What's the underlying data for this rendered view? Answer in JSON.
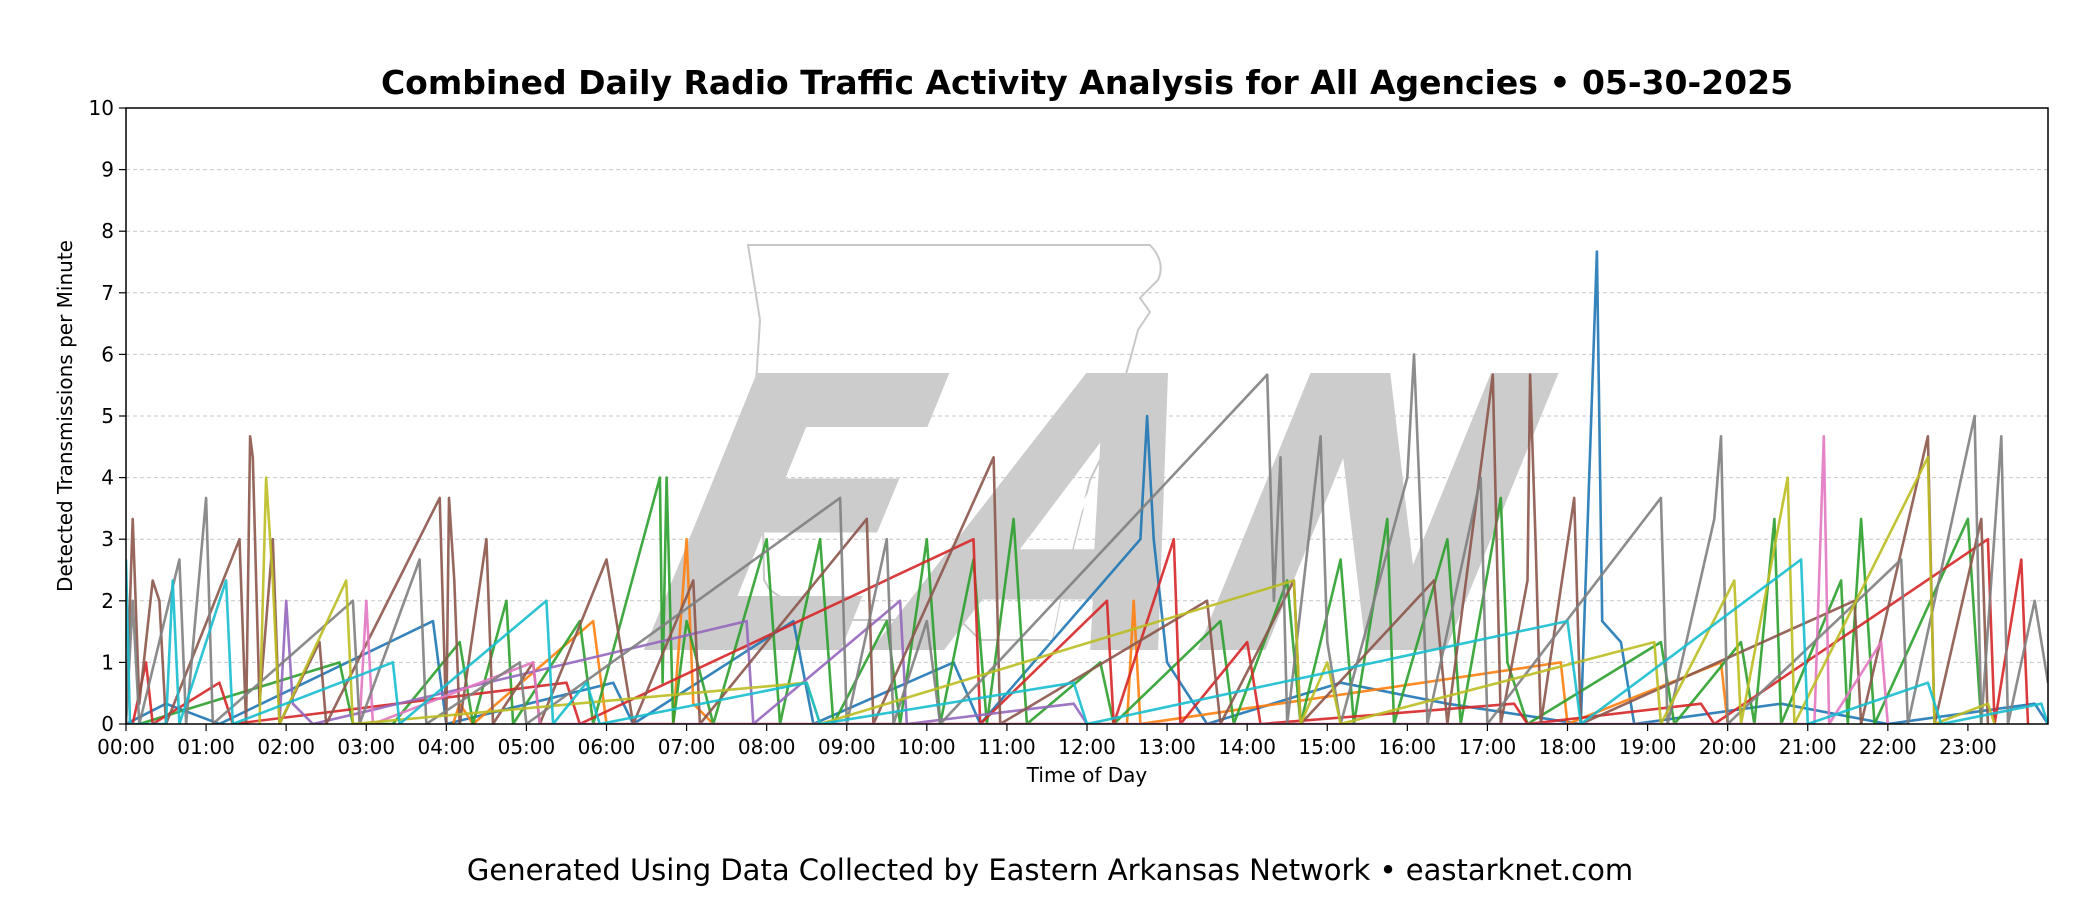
{
  "footer": "Generated Using Data Collected by Eastern Arkansas Network • eastarknet.com",
  "watermark": {
    "text": "EAN",
    "color": "#cccccc",
    "logo": "arkansas-state-outline"
  },
  "chart_data": {
    "type": "line",
    "title": "Combined Daily Radio Traffic Activity Analysis for All Agencies • 05-30-2025",
    "xlabel": "Time of Day",
    "ylabel": "Detected Transmissions per Minute",
    "xlim": [
      "00:00",
      "24:00"
    ],
    "ylim": [
      0,
      10
    ],
    "yticks": [
      0,
      1,
      2,
      3,
      4,
      5,
      6,
      7,
      8,
      9,
      10
    ],
    "xticks": [
      "00:00",
      "01:00",
      "02:00",
      "03:00",
      "04:00",
      "05:00",
      "06:00",
      "07:00",
      "08:00",
      "09:00",
      "10:00",
      "11:00",
      "12:00",
      "13:00",
      "14:00",
      "15:00",
      "16:00",
      "17:00",
      "18:00",
      "19:00",
      "20:00",
      "21:00",
      "22:00",
      "23:00"
    ],
    "grid": "horizontal-dashed",
    "legend": "none",
    "series": [
      {
        "color": "#1f77b4",
        "points": [
          [
            "00:00",
            0
          ],
          [
            "00:30",
            0.33
          ],
          [
            "01:10",
            0
          ],
          [
            "03:50",
            1.67
          ],
          [
            "04:00",
            0
          ],
          [
            "06:05",
            0.67
          ],
          [
            "06:20",
            0
          ],
          [
            "08:20",
            1.67
          ],
          [
            "08:35",
            0
          ],
          [
            "10:20",
            1
          ],
          [
            "10:40",
            0
          ],
          [
            "12:40",
            3
          ],
          [
            "12:45",
            5
          ],
          [
            "12:50",
            3
          ],
          [
            "13:00",
            1
          ],
          [
            "13:30",
            0
          ],
          [
            "15:10",
            0.67
          ],
          [
            "16:30",
            0.33
          ],
          [
            "18:10",
            0
          ],
          [
            "18:22",
            7.67
          ],
          [
            "18:26",
            1.67
          ],
          [
            "18:40",
            1.33
          ],
          [
            "18:50",
            0
          ],
          [
            "20:40",
            0.33
          ],
          [
            "22:00",
            0
          ],
          [
            "23:50",
            0.33
          ],
          [
            "24:00",
            0
          ]
        ]
      },
      {
        "color": "#ff7f0e",
        "points": [
          [
            "04:05",
            0
          ],
          [
            "04:10",
            0.33
          ],
          [
            "04:20",
            0
          ],
          [
            "05:50",
            1.67
          ],
          [
            "06:00",
            0
          ],
          [
            "06:50",
            0
          ],
          [
            "07:00",
            3
          ],
          [
            "07:05",
            0.33
          ],
          [
            "07:20",
            0
          ],
          [
            "12:30",
            0
          ],
          [
            "12:35",
            2
          ],
          [
            "12:40",
            0
          ],
          [
            "17:55",
            1
          ],
          [
            "18:00",
            0
          ],
          [
            "19:55",
            1
          ],
          [
            "20:00",
            0
          ]
        ]
      },
      {
        "color": "#2ca02c",
        "points": [
          [
            "00:10",
            0
          ],
          [
            "02:40",
            1
          ],
          [
            "02:50",
            0
          ],
          [
            "03:20",
            0
          ],
          [
            "04:10",
            1.33
          ],
          [
            "04:20",
            0
          ],
          [
            "04:45",
            2
          ],
          [
            "04:50",
            0
          ],
          [
            "05:40",
            1.67
          ],
          [
            "05:50",
            0
          ],
          [
            "06:40",
            4
          ],
          [
            "06:42",
            0.67
          ],
          [
            "06:45",
            4
          ],
          [
            "06:50",
            0
          ],
          [
            "07:00",
            1.67
          ],
          [
            "07:20",
            0
          ],
          [
            "08:00",
            3
          ],
          [
            "08:10",
            0
          ],
          [
            "08:40",
            3
          ],
          [
            "08:50",
            0
          ],
          [
            "09:30",
            1.67
          ],
          [
            "09:40",
            0
          ],
          [
            "10:00",
            3
          ],
          [
            "10:10",
            0
          ],
          [
            "10:35",
            2.67
          ],
          [
            "10:45",
            0
          ],
          [
            "11:05",
            3.33
          ],
          [
            "11:15",
            0
          ],
          [
            "12:10",
            1
          ],
          [
            "12:20",
            0
          ],
          [
            "13:40",
            1.67
          ],
          [
            "13:50",
            0
          ],
          [
            "14:30",
            2.33
          ],
          [
            "14:40",
            0
          ],
          [
            "15:10",
            2.67
          ],
          [
            "15:20",
            0
          ],
          [
            "15:45",
            3.33
          ],
          [
            "15:50",
            0
          ],
          [
            "16:30",
            3
          ],
          [
            "16:40",
            0
          ],
          [
            "17:10",
            3.67
          ],
          [
            "17:15",
            1
          ],
          [
            "17:30",
            0
          ],
          [
            "19:10",
            1.33
          ],
          [
            "19:20",
            0
          ],
          [
            "20:10",
            1.33
          ],
          [
            "20:20",
            0
          ],
          [
            "20:35",
            3.33
          ],
          [
            "20:40",
            0
          ],
          [
            "21:25",
            2.33
          ],
          [
            "21:30",
            0
          ],
          [
            "21:40",
            3.33
          ],
          [
            "21:50",
            0
          ],
          [
            "23:00",
            3.33
          ],
          [
            "23:10",
            0
          ]
        ]
      },
      {
        "color": "#d62728",
        "points": [
          [
            "00:05",
            0
          ],
          [
            "00:15",
            1
          ],
          [
            "00:20",
            0
          ],
          [
            "01:10",
            0.67
          ],
          [
            "01:20",
            0
          ],
          [
            "05:30",
            0.67
          ],
          [
            "05:40",
            0
          ],
          [
            "10:35",
            3
          ],
          [
            "10:40",
            0
          ],
          [
            "12:15",
            2
          ],
          [
            "12:20",
            0
          ],
          [
            "13:05",
            3
          ],
          [
            "13:10",
            0
          ],
          [
            "14:00",
            1.33
          ],
          [
            "14:10",
            0
          ],
          [
            "17:20",
            0.33
          ],
          [
            "17:30",
            0
          ],
          [
            "19:40",
            0.33
          ],
          [
            "19:50",
            0
          ],
          [
            "23:15",
            3
          ],
          [
            "23:20",
            0
          ],
          [
            "23:40",
            2.67
          ],
          [
            "23:45",
            0
          ]
        ]
      },
      {
        "color": "#9467bd",
        "points": [
          [
            "01:55",
            0
          ],
          [
            "02:00",
            2
          ],
          [
            "02:05",
            0.33
          ],
          [
            "02:20",
            0
          ],
          [
            "07:45",
            1.67
          ],
          [
            "07:50",
            0
          ],
          [
            "09:40",
            2
          ],
          [
            "09:45",
            0
          ],
          [
            "11:50",
            0.33
          ],
          [
            "12:00",
            0
          ]
        ]
      },
      {
        "color": "#8c564b",
        "points": [
          [
            "00:00",
            0
          ],
          [
            "00:05",
            3.33
          ],
          [
            "00:10",
            0.33
          ],
          [
            "00:20",
            2.33
          ],
          [
            "00:25",
            2
          ],
          [
            "00:30",
            0
          ],
          [
            "01:25",
            3
          ],
          [
            "01:30",
            0
          ],
          [
            "01:33",
            4.67
          ],
          [
            "01:35",
            4.33
          ],
          [
            "01:40",
            0.33
          ],
          [
            "01:50",
            3
          ],
          [
            "01:55",
            0
          ],
          [
            "02:25",
            1.33
          ],
          [
            "02:30",
            0
          ],
          [
            "03:55",
            3.67
          ],
          [
            "04:00",
            0
          ],
          [
            "04:02",
            3.67
          ],
          [
            "04:06",
            2.33
          ],
          [
            "04:10",
            0
          ],
          [
            "04:30",
            3
          ],
          [
            "04:35",
            0
          ],
          [
            "05:05",
            1
          ],
          [
            "05:10",
            0
          ],
          [
            "06:00",
            2.67
          ],
          [
            "06:10",
            1.33
          ],
          [
            "06:20",
            0
          ],
          [
            "07:05",
            2.33
          ],
          [
            "07:10",
            0
          ],
          [
            "09:15",
            3.33
          ],
          [
            "09:20",
            0
          ],
          [
            "10:50",
            4.33
          ],
          [
            "10:55",
            0
          ],
          [
            "13:30",
            2
          ],
          [
            "13:40",
            0
          ],
          [
            "14:35",
            2.33
          ],
          [
            "14:40",
            0
          ],
          [
            "16:20",
            2.33
          ],
          [
            "16:30",
            0
          ],
          [
            "17:04",
            5.67
          ],
          [
            "17:10",
            0
          ],
          [
            "17:30",
            2.33
          ],
          [
            "17:32",
            5.67
          ],
          [
            "17:36",
            3
          ],
          [
            "17:40",
            0
          ],
          [
            "18:05",
            3.67
          ],
          [
            "18:10",
            0
          ],
          [
            "21:35",
            2
          ],
          [
            "21:40",
            0
          ],
          [
            "22:30",
            4.67
          ],
          [
            "22:35",
            0
          ],
          [
            "23:10",
            3.33
          ],
          [
            "23:15",
            0
          ]
        ]
      },
      {
        "color": "#e377c2",
        "points": [
          [
            "02:55",
            0
          ],
          [
            "03:00",
            2
          ],
          [
            "03:05",
            0
          ],
          [
            "05:05",
            1
          ],
          [
            "05:10",
            0
          ],
          [
            "06:00",
            0
          ],
          [
            "21:05",
            0
          ],
          [
            "21:12",
            4.67
          ],
          [
            "21:16",
            0
          ],
          [
            "21:55",
            1.33
          ],
          [
            "22:00",
            0
          ]
        ]
      },
      {
        "color": "#7f7f7f",
        "points": [
          [
            "00:00",
            0
          ],
          [
            "00:05",
            2
          ],
          [
            "00:10",
            0
          ],
          [
            "00:40",
            2.67
          ],
          [
            "00:45",
            0
          ],
          [
            "01:00",
            3.67
          ],
          [
            "01:05",
            0
          ],
          [
            "02:50",
            2
          ],
          [
            "02:55",
            0
          ],
          [
            "03:40",
            2.67
          ],
          [
            "03:45",
            0
          ],
          [
            "04:55",
            1
          ],
          [
            "05:00",
            0
          ],
          [
            "08:55",
            3.67
          ],
          [
            "09:00",
            0
          ],
          [
            "09:30",
            3
          ],
          [
            "09:35",
            0
          ],
          [
            "10:00",
            1.67
          ],
          [
            "10:10",
            0
          ],
          [
            "14:15",
            5.67
          ],
          [
            "14:20",
            2
          ],
          [
            "14:25",
            4.33
          ],
          [
            "14:30",
            0
          ],
          [
            "14:55",
            4.67
          ],
          [
            "15:00",
            1.33
          ],
          [
            "15:10",
            0
          ],
          [
            "16:00",
            4
          ],
          [
            "16:05",
            6
          ],
          [
            "16:10",
            3.33
          ],
          [
            "16:15",
            0
          ],
          [
            "16:55",
            4
          ],
          [
            "17:00",
            0
          ],
          [
            "19:10",
            3.67
          ],
          [
            "19:15",
            0
          ],
          [
            "19:50",
            3.33
          ],
          [
            "19:55",
            4.67
          ],
          [
            "20:00",
            0
          ],
          [
            "22:10",
            2.67
          ],
          [
            "22:15",
            0
          ],
          [
            "23:05",
            5
          ],
          [
            "23:10",
            0
          ],
          [
            "23:25",
            4.67
          ],
          [
            "23:30",
            0
          ],
          [
            "23:50",
            2
          ],
          [
            "24:00",
            0.67
          ]
        ]
      },
      {
        "color": "#bcbd22",
        "points": [
          [
            "01:40",
            0
          ],
          [
            "01:45",
            4
          ],
          [
            "01:50",
            2.33
          ],
          [
            "01:55",
            0
          ],
          [
            "02:45",
            2.33
          ],
          [
            "02:50",
            0
          ],
          [
            "08:30",
            0.67
          ],
          [
            "08:40",
            0
          ],
          [
            "14:35",
            2.33
          ],
          [
            "14:40",
            0
          ],
          [
            "15:00",
            1
          ],
          [
            "15:10",
            0
          ],
          [
            "19:05",
            1.33
          ],
          [
            "19:10",
            0
          ],
          [
            "20:05",
            2.33
          ],
          [
            "20:10",
            0
          ],
          [
            "20:45",
            4
          ],
          [
            "20:50",
            0
          ],
          [
            "22:30",
            4.33
          ],
          [
            "22:35",
            0
          ],
          [
            "23:15",
            0.33
          ],
          [
            "23:20",
            0
          ]
        ]
      },
      {
        "color": "#17becf",
        "points": [
          [
            "00:00",
            2.67
          ],
          [
            "00:03",
            0
          ],
          [
            "00:30",
            0
          ],
          [
            "00:35",
            2.33
          ],
          [
            "00:40",
            0
          ],
          [
            "01:15",
            2.33
          ],
          [
            "01:20",
            0
          ],
          [
            "03:20",
            1
          ],
          [
            "03:25",
            0
          ],
          [
            "05:15",
            2
          ],
          [
            "05:20",
            0
          ],
          [
            "05:45",
            0.67
          ],
          [
            "05:55",
            0
          ],
          [
            "08:30",
            0.67
          ],
          [
            "08:40",
            0
          ],
          [
            "11:50",
            0.67
          ],
          [
            "12:00",
            0
          ],
          [
            "18:00",
            1.67
          ],
          [
            "18:10",
            0
          ],
          [
            "20:55",
            2.67
          ],
          [
            "21:00",
            0
          ],
          [
            "22:30",
            0.67
          ],
          [
            "22:40",
            0
          ],
          [
            "23:55",
            0.33
          ],
          [
            "24:00",
            0
          ]
        ]
      }
    ]
  }
}
